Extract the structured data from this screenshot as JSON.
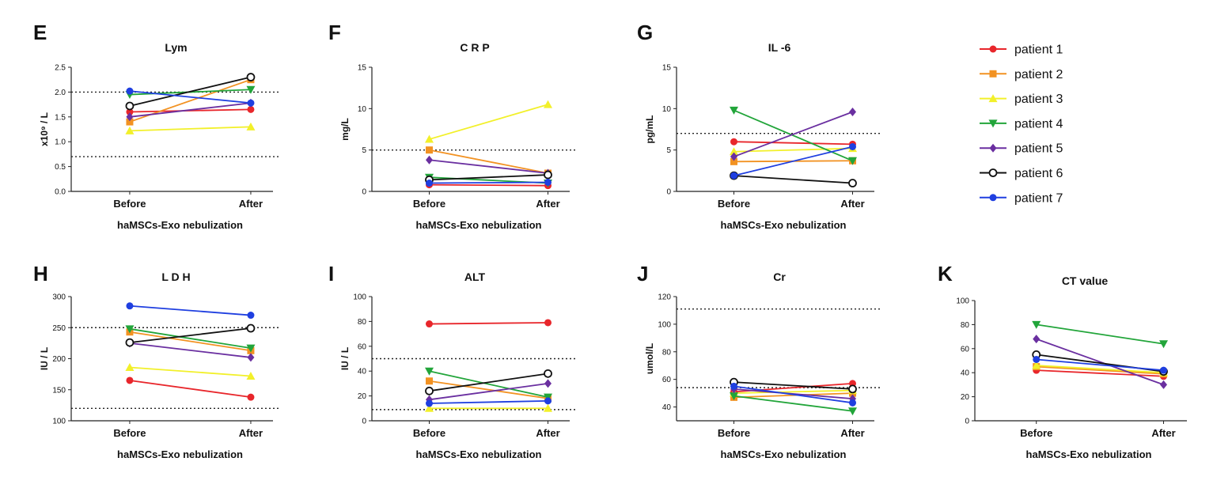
{
  "patients": [
    {
      "name": "patient 1",
      "color": "#e8262b",
      "marker": "circle"
    },
    {
      "name": "patient 2",
      "color": "#f29222",
      "marker": "square"
    },
    {
      "name": "patient 3",
      "color": "#f2f02a",
      "marker": "triangle-up"
    },
    {
      "name": "patient 4",
      "color": "#22a53a",
      "marker": "triangle-down"
    },
    {
      "name": "patient 5",
      "color": "#6a2fa0",
      "marker": "diamond"
    },
    {
      "name": "patient 6",
      "color": "#111111",
      "marker": "open-circle"
    },
    {
      "name": "patient 7",
      "color": "#1f3fe0",
      "marker": "circle"
    }
  ],
  "chart_data": [
    {
      "panel": "E",
      "type": "line",
      "title": "Lym",
      "ylabel": "x10⁹ / L",
      "xlabel": "haMSCs-Exo nebulization",
      "categories": [
        "Before",
        "After"
      ],
      "ylim": [
        0,
        2.5
      ],
      "yticks": [
        "0.0",
        "0.5",
        "1.0",
        "1.5",
        "2.0",
        "2.5"
      ],
      "ytick_values": [
        0,
        0.5,
        1.0,
        1.5,
        2.0,
        2.5
      ],
      "ref_lines": [
        2.0,
        0.7
      ],
      "series": [
        {
          "name": "patient 1",
          "values": [
            1.6,
            1.65
          ]
        },
        {
          "name": "patient 2",
          "values": [
            1.4,
            2.25
          ]
        },
        {
          "name": "patient 3",
          "values": [
            1.22,
            1.3
          ]
        },
        {
          "name": "patient 4",
          "values": [
            1.95,
            2.05
          ]
        },
        {
          "name": "patient 5",
          "values": [
            1.5,
            1.78
          ]
        },
        {
          "name": "patient 6",
          "values": [
            1.72,
            2.3
          ]
        },
        {
          "name": "patient 7",
          "values": [
            2.02,
            1.78
          ]
        }
      ]
    },
    {
      "panel": "F",
      "type": "line",
      "title": "C R P",
      "ylabel": "mg/L",
      "xlabel": "haMSCs-Exo nebulization",
      "categories": [
        "Before",
        "After"
      ],
      "ylim": [
        0,
        15
      ],
      "yticks": [
        "0",
        "5",
        "10",
        "15"
      ],
      "ytick_values": [
        0,
        5,
        10,
        15
      ],
      "ref_lines": [
        5
      ],
      "series": [
        {
          "name": "patient 1",
          "values": [
            0.8,
            0.7
          ]
        },
        {
          "name": "patient 2",
          "values": [
            5.0,
            2.2
          ]
        },
        {
          "name": "patient 3",
          "values": [
            6.3,
            10.5
          ]
        },
        {
          "name": "patient 4",
          "values": [
            1.7,
            1.0
          ]
        },
        {
          "name": "patient 5",
          "values": [
            3.8,
            2.2
          ]
        },
        {
          "name": "patient 6",
          "values": [
            1.4,
            2.0
          ]
        },
        {
          "name": "patient 7",
          "values": [
            1.0,
            1.1
          ]
        }
      ]
    },
    {
      "panel": "G",
      "type": "line",
      "title": "IL -6",
      "ylabel": "pg/mL",
      "xlabel": "haMSCs-Exo nebulization",
      "categories": [
        "Before",
        "After"
      ],
      "ylim": [
        0,
        15
      ],
      "yticks": [
        "0",
        "5",
        "10",
        "15"
      ],
      "ytick_values": [
        0,
        5,
        10,
        15
      ],
      "ref_lines": [
        7
      ],
      "series": [
        {
          "name": "patient 1",
          "values": [
            6.0,
            5.7
          ]
        },
        {
          "name": "patient 2",
          "values": [
            3.6,
            3.7
          ]
        },
        {
          "name": "patient 3",
          "values": [
            4.8,
            5.2
          ]
        },
        {
          "name": "patient 4",
          "values": [
            9.8,
            3.7
          ]
        },
        {
          "name": "patient 5",
          "values": [
            4.2,
            9.6
          ]
        },
        {
          "name": "patient 6",
          "values": [
            1.9,
            1.0
          ]
        },
        {
          "name": "patient 7",
          "values": [
            1.9,
            5.4
          ]
        }
      ]
    },
    {
      "panel": "H",
      "type": "line",
      "title": "L D H",
      "ylabel": "IU / L",
      "xlabel": "haMSCs-Exo nebulization",
      "categories": [
        "Before",
        "After"
      ],
      "ylim": [
        100,
        300
      ],
      "yticks": [
        "100",
        "150",
        "200",
        "250",
        "300"
      ],
      "ytick_values": [
        100,
        150,
        200,
        250,
        300
      ],
      "ref_lines": [
        250,
        120
      ],
      "series": [
        {
          "name": "patient 1",
          "values": [
            165,
            138
          ]
        },
        {
          "name": "patient 2",
          "values": [
            243,
            213
          ]
        },
        {
          "name": "patient 3",
          "values": [
            186,
            172
          ]
        },
        {
          "name": "patient 4",
          "values": [
            248,
            217
          ]
        },
        {
          "name": "patient 5",
          "values": [
            225,
            202
          ]
        },
        {
          "name": "patient 6",
          "values": [
            226,
            249
          ]
        },
        {
          "name": "patient 7",
          "values": [
            285,
            270
          ]
        }
      ]
    },
    {
      "panel": "I",
      "type": "line",
      "title": "ALT",
      "ylabel": "IU / L",
      "xlabel": "haMSCs-Exo nebulization",
      "categories": [
        "Before",
        "After"
      ],
      "ylim": [
        0,
        100
      ],
      "yticks": [
        "0",
        "20",
        "40",
        "60",
        "80",
        "100"
      ],
      "ytick_values": [
        0,
        20,
        40,
        60,
        80,
        100
      ],
      "ref_lines": [
        50,
        9
      ],
      "series": [
        {
          "name": "patient 1",
          "values": [
            78,
            79
          ]
        },
        {
          "name": "patient 2",
          "values": [
            32,
            18
          ]
        },
        {
          "name": "patient 3",
          "values": [
            10,
            10
          ]
        },
        {
          "name": "patient 4",
          "values": [
            40,
            19
          ]
        },
        {
          "name": "patient 5",
          "values": [
            17,
            30
          ]
        },
        {
          "name": "patient 6",
          "values": [
            24,
            38
          ]
        },
        {
          "name": "patient 7",
          "values": [
            14,
            16
          ]
        }
      ]
    },
    {
      "panel": "J",
      "type": "line",
      "title": "Cr",
      "ylabel": "umol/L",
      "xlabel": "haMSCs-Exo nebulization",
      "categories": [
        "Before",
        "After"
      ],
      "ylim": [
        30,
        120
      ],
      "yticks": [
        "40",
        "60",
        "80",
        "100",
        "120"
      ],
      "ytick_values": [
        40,
        60,
        80,
        100,
        120
      ],
      "ref_lines": [
        111,
        54
      ],
      "series": [
        {
          "name": "patient 1",
          "values": [
            51,
            57
          ]
        },
        {
          "name": "patient 2",
          "values": [
            47,
            50
          ]
        },
        {
          "name": "patient 3",
          "values": [
            50,
            52
          ]
        },
        {
          "name": "patient 4",
          "values": [
            48,
            37
          ]
        },
        {
          "name": "patient 5",
          "values": [
            53,
            46
          ]
        },
        {
          "name": "patient 6",
          "values": [
            58,
            53
          ]
        },
        {
          "name": "patient 7",
          "values": [
            55,
            43
          ]
        }
      ]
    },
    {
      "panel": "K",
      "type": "line",
      "title": "CT value",
      "ylabel": "",
      "xlabel": "haMSCs-Exo nebulization",
      "categories": [
        "Before",
        "After"
      ],
      "ylim": [
        0,
        100
      ],
      "yticks": [
        "0",
        "20",
        "40",
        "60",
        "80",
        "100"
      ],
      "ytick_values": [
        0,
        20,
        40,
        60,
        80,
        100
      ],
      "ref_lines": [],
      "series": [
        {
          "name": "patient 1",
          "values": [
            42,
            37
          ]
        },
        {
          "name": "patient 2",
          "values": [
            45,
            39
          ]
        },
        {
          "name": "patient 3",
          "values": [
            46,
            40
          ]
        },
        {
          "name": "patient 4",
          "values": [
            80,
            64
          ]
        },
        {
          "name": "patient 5",
          "values": [
            68,
            30
          ]
        },
        {
          "name": "patient 6",
          "values": [
            55,
            41
          ]
        },
        {
          "name": "patient 7",
          "values": [
            51,
            42
          ]
        }
      ]
    }
  ]
}
